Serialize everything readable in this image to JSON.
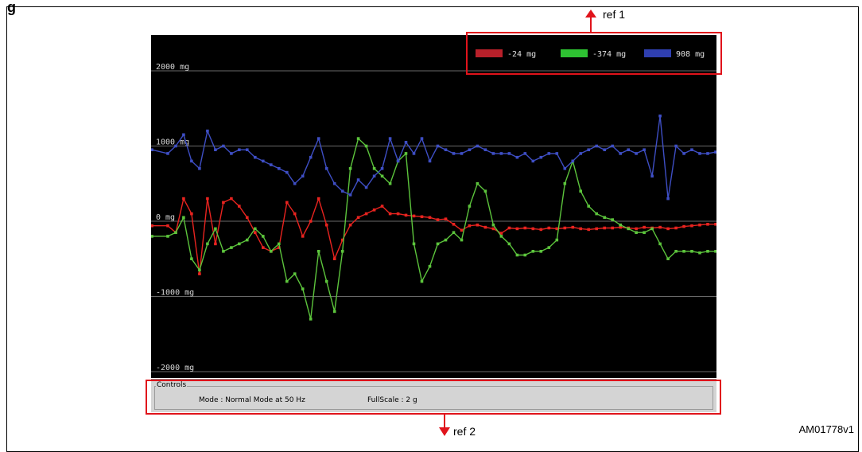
{
  "figure": {
    "corner_title": "g",
    "figure_code": "AM01778v1",
    "ref1_label": "ref 1",
    "ref2_label": "ref 2",
    "annotation_color": "#e0131b"
  },
  "controls": {
    "group_label": "Controls",
    "mode_label": "Mode  :  Normal Mode at  50 Hz",
    "fullscale_label": "FullScale  :  2 g"
  },
  "chart_data": {
    "type": "line",
    "ylim": [
      -2200,
      2200
    ],
    "yticks": [
      {
        "value": 2000,
        "label": "2000 mg"
      },
      {
        "value": 1000,
        "label": "1000 mg"
      },
      {
        "value": 0,
        "label": "0 mg"
      },
      {
        "value": -1000,
        "label": "-1000 mg"
      },
      {
        "value": -2000,
        "label": "-2000 mg"
      }
    ],
    "grid": true,
    "legend_position": "top-right",
    "legend": [
      {
        "label": "-24 mg",
        "color": "#b8202a"
      },
      {
        "label": "-374 mg",
        "color": "#2ec232"
      },
      {
        "label": "908 mg",
        "color": "#2f3fb0"
      }
    ],
    "x": [
      0,
      20,
      30,
      40,
      50,
      60,
      70,
      80,
      90,
      100,
      110,
      120,
      130,
      140,
      150,
      160,
      170,
      180,
      190,
      200,
      210,
      220,
      230,
      240,
      250,
      260,
      270,
      280,
      290,
      300,
      310,
      320,
      330,
      340,
      350,
      360,
      370,
      380,
      390,
      400,
      410,
      420,
      430,
      440,
      450,
      460,
      470,
      480,
      490,
      500,
      510,
      520,
      530,
      540,
      550,
      560,
      570,
      580,
      590,
      600,
      610,
      620,
      630,
      640,
      650,
      660,
      670,
      680,
      690,
      700,
      710
    ],
    "series": [
      {
        "color": "#e8231f",
        "values": [
          -60,
          -60,
          -150,
          300,
          100,
          -700,
          300,
          -300,
          250,
          300,
          200,
          50,
          -150,
          -350,
          -400,
          -350,
          250,
          100,
          -200,
          0,
          300,
          -50,
          -500,
          -250,
          -50,
          50,
          100,
          150,
          200,
          100,
          100,
          80,
          70,
          60,
          50,
          20,
          30,
          -40,
          -120,
          -60,
          -50,
          -80,
          -100,
          -160,
          -90,
          -100,
          -90,
          -100,
          -110,
          -90,
          -100,
          -90,
          -80,
          -100,
          -110,
          -100,
          -90,
          -90,
          -80,
          -90,
          -100,
          -80,
          -90,
          -80,
          -100,
          -90,
          -70,
          -60,
          -50,
          -40,
          -40
        ]
      },
      {
        "color": "#5cc43c",
        "values": [
          -200,
          -200,
          -150,
          50,
          -500,
          -650,
          -300,
          -100,
          -400,
          -350,
          -300,
          -250,
          -100,
          -200,
          -400,
          -300,
          -800,
          -700,
          -900,
          -1300,
          -400,
          -800,
          -1200,
          -400,
          700,
          1100,
          1000,
          700,
          600,
          500,
          800,
          900,
          -300,
          -800,
          -600,
          -300,
          -250,
          -150,
          -250,
          200,
          500,
          400,
          -50,
          -200,
          -300,
          -450,
          -450,
          -400,
          -400,
          -350,
          -250,
          500,
          800,
          400,
          200,
          100,
          50,
          20,
          -50,
          -100,
          -150,
          -150,
          -100,
          -300,
          -500,
          -400,
          -400,
          -400,
          -420,
          -400,
          -400
        ]
      },
      {
        "color": "#3e4ec4",
        "values": [
          950,
          900,
          1000,
          1150,
          800,
          700,
          1200,
          950,
          1000,
          900,
          950,
          950,
          850,
          800,
          750,
          700,
          650,
          500,
          600,
          850,
          1100,
          700,
          500,
          400,
          350,
          550,
          450,
          600,
          700,
          1100,
          800,
          1050,
          900,
          1100,
          800,
          1000,
          950,
          900,
          900,
          950,
          1000,
          950,
          900,
          900,
          900,
          850,
          900,
          800,
          850,
          900,
          900,
          700,
          800,
          900,
          950,
          1000,
          950,
          1000,
          900,
          950,
          900,
          950,
          600,
          1400,
          300,
          1000,
          900,
          950,
          900,
          900,
          920
        ]
      }
    ]
  }
}
